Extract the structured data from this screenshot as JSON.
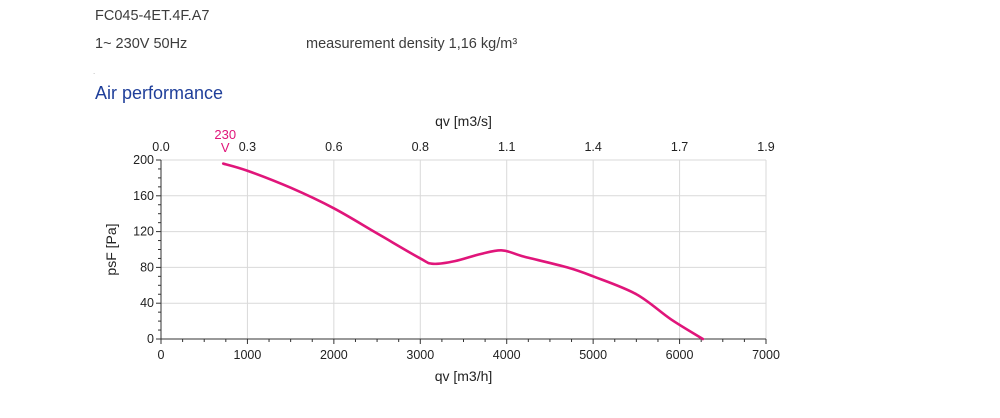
{
  "header": {
    "model": "FC045-4ET.4F.A7",
    "supply": "1~ 230V 50Hz",
    "density": "measurement density 1,16 kg/m³",
    "dot": "."
  },
  "section": {
    "title": "Air performance"
  },
  "colors": {
    "curve": "#e0157a",
    "title": "#1f3f9a",
    "grid": "#d9d9d9",
    "axis": "#333333"
  },
  "chart_data": {
    "type": "line",
    "xlabel": "qv [m3/h]",
    "ylabel": "psF [Pa]",
    "x2label": "qv [m3/s]",
    "xlim": [
      0,
      7000
    ],
    "ylim": [
      0,
      200
    ],
    "x_ticks": [
      "0",
      "1000",
      "2000",
      "3000",
      "4000",
      "5000",
      "6000",
      "7000"
    ],
    "y_ticks": [
      "0",
      "40",
      "80",
      "120",
      "160",
      "200"
    ],
    "x2_ticks": [
      "0.0",
      "0.3",
      "0.6",
      "0.8",
      "1.1",
      "1.4",
      "1.7",
      "1.9"
    ],
    "grid": true,
    "series": [
      {
        "name": "230 V",
        "label_lines": [
          "230",
          "V"
        ],
        "x": [
          720,
          1000,
          1500,
          2000,
          2500,
          3000,
          3150,
          3400,
          3700,
          3950,
          4200,
          4700,
          5000,
          5500,
          5900,
          6270
        ],
        "y": [
          196,
          188,
          169,
          146,
          118,
          90,
          84,
          87,
          95,
          99,
          92,
          80,
          70,
          50,
          22,
          0
        ]
      }
    ]
  }
}
